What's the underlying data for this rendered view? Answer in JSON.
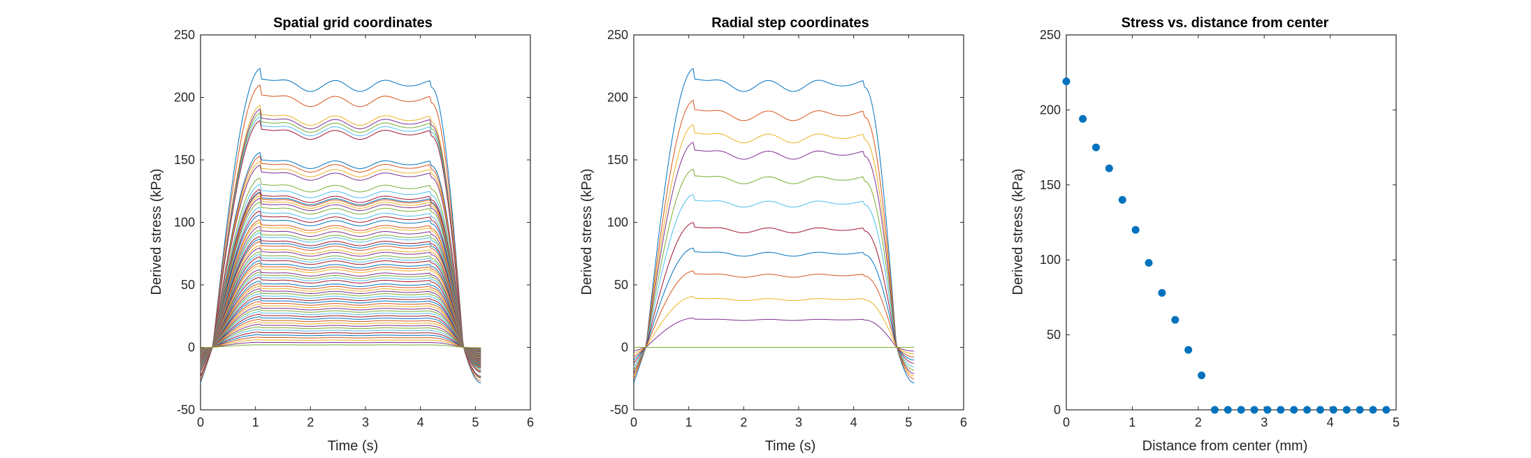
{
  "colors": [
    "#0072BD",
    "#D95319",
    "#EDB120",
    "#7E2F8E",
    "#77AC30",
    "#4DBEEE",
    "#A2142F"
  ],
  "axis_color": "#262626",
  "chart_data": [
    {
      "type": "line",
      "title": "Spatial grid coordinates",
      "xlabel": "Time (s)",
      "ylabel": "Derived stress (kPa)",
      "xlim": [
        0,
        6
      ],
      "ylim": [
        -50,
        250
      ],
      "xticks": [
        0,
        1,
        2,
        3,
        4,
        5,
        6
      ],
      "yticks": [
        -50,
        0,
        50,
        100,
        150,
        200,
        250
      ],
      "time_range": [
        0,
        5.1
      ],
      "grid": false,
      "legend": "none",
      "series_plateau_values": [
        219,
        206,
        190,
        187,
        184,
        181,
        178,
        153,
        150,
        146,
        143,
        133,
        128,
        124,
        122,
        121,
        119,
        117,
        114,
        110,
        107,
        104,
        100,
        98,
        95,
        92,
        90,
        87,
        85,
        83,
        80,
        78,
        75,
        73,
        71,
        68,
        66,
        64,
        61,
        59,
        57,
        55,
        52,
        50,
        48,
        46,
        44,
        42,
        40,
        38,
        36,
        34,
        32,
        30,
        28,
        26,
        24,
        22,
        20,
        18,
        16,
        14,
        12,
        10,
        8,
        6,
        4,
        2
      ]
    },
    {
      "type": "line",
      "title": "Radial step coordinates",
      "xlabel": "Time (s)",
      "ylabel": "Derived stress (kPa)",
      "xlim": [
        0,
        6
      ],
      "ylim": [
        -50,
        250
      ],
      "xticks": [
        0,
        1,
        2,
        3,
        4,
        5,
        6
      ],
      "yticks": [
        -50,
        0,
        50,
        100,
        150,
        200,
        250
      ],
      "time_range": [
        0,
        5.1
      ],
      "grid": false,
      "legend": "none",
      "series_plateau_values": [
        219,
        194,
        175,
        161,
        140,
        120,
        98,
        78,
        60,
        40,
        23,
        0
      ]
    },
    {
      "type": "scatter",
      "title": "Stress vs. distance from center",
      "xlabel": "Distance from center (mm)",
      "ylabel": "Derived stress (kPa)",
      "xlim": [
        0,
        5
      ],
      "ylim": [
        0,
        250
      ],
      "xticks": [
        0,
        1,
        2,
        3,
        4,
        5
      ],
      "yticks": [
        0,
        50,
        100,
        150,
        200,
        250
      ],
      "grid": false,
      "legend": "none",
      "x": [
        0,
        0.25,
        0.45,
        0.65,
        0.85,
        1.05,
        1.25,
        1.45,
        1.65,
        1.85,
        2.05,
        2.25,
        2.45,
        2.65,
        2.85,
        3.05,
        3.25,
        3.45,
        3.65,
        3.85,
        4.05,
        4.25,
        4.45,
        4.65,
        4.85
      ],
      "y": [
        219,
        194,
        175,
        161,
        140,
        120,
        98,
        78,
        60,
        40,
        23,
        0,
        0,
        0,
        0,
        0,
        0,
        0,
        0,
        0,
        0,
        0,
        0,
        0,
        0
      ]
    }
  ]
}
